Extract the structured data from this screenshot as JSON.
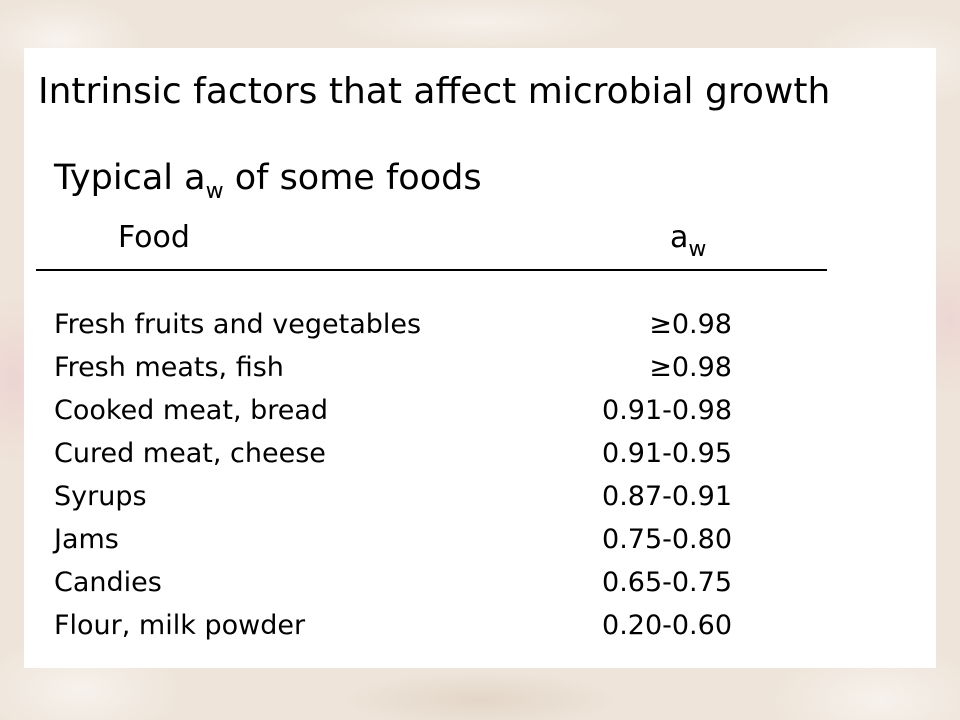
{
  "slide": {
    "title": "Intrinsic factors that affect microbial growth",
    "table_title_prefix": "Typical a",
    "table_title_subscript": "w",
    "table_title_suffix": " of some foods"
  },
  "table": {
    "headers": {
      "food": "Food",
      "aw_main": "a",
      "aw_subscript": "w"
    },
    "rows": [
      {
        "food": "Fresh fruits and vegetables",
        "aw": "≥0.98"
      },
      {
        "food": "Fresh meats, fish",
        "aw": "≥0.98"
      },
      {
        "food": "Cooked meat, bread",
        "aw": "0.91-0.98"
      },
      {
        "food": "Cured meat, cheese",
        "aw": "0.91-0.95"
      },
      {
        "food": "Syrups",
        "aw": "0.87-0.91"
      },
      {
        "food": "Jams",
        "aw": "0.75-0.80"
      },
      {
        "food": "Candies",
        "aw": "0.65-0.75"
      },
      {
        "food": "Flour, milk powder",
        "aw": "0.20-0.60"
      }
    ]
  }
}
